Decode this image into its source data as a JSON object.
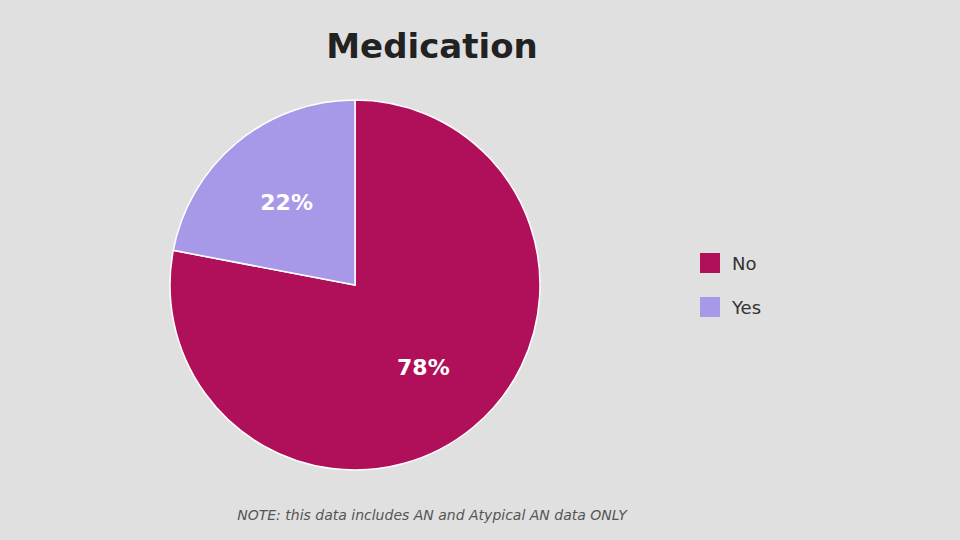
{
  "chart_data": {
    "type": "pie",
    "title": "Medication",
    "categories": [
      "No",
      "Yes"
    ],
    "values": [
      78,
      22
    ],
    "value_labels": [
      "78%",
      "22%"
    ],
    "data_labels": true,
    "colors": [
      "#B0105A",
      "#A899E8"
    ],
    "legend": "right",
    "annotations": [
      "NOTE: this data includes AN and Atypical AN data ONLY"
    ]
  }
}
